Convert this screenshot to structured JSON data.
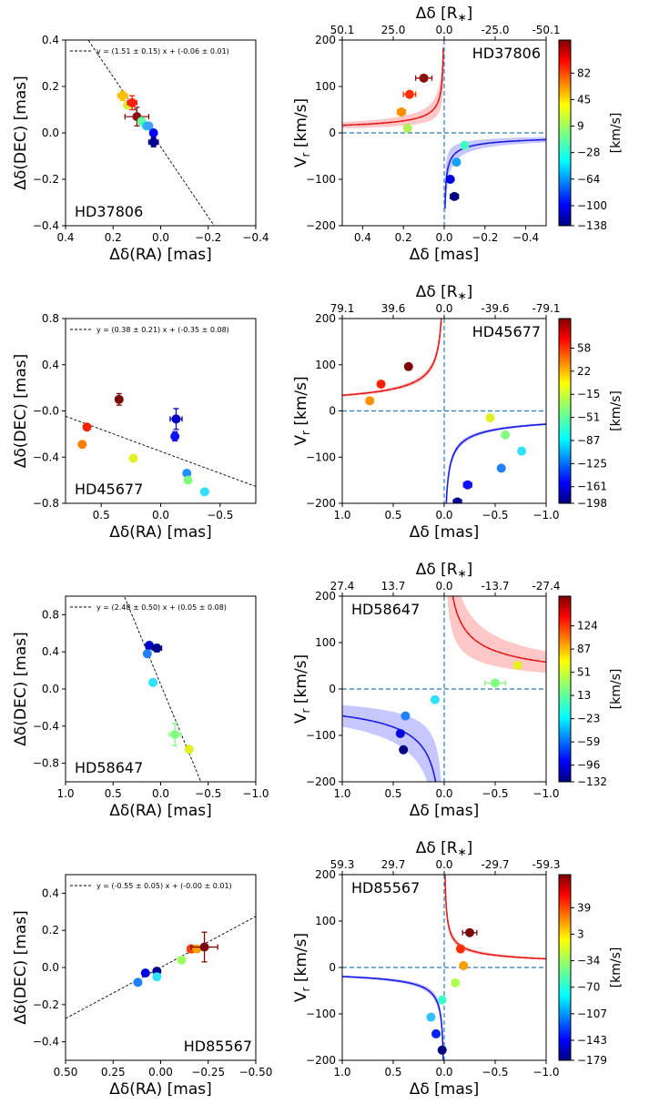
{
  "chart_data": [
    {
      "type": "scatter",
      "star": "HD37806",
      "xlabel": "Δδ(RA) [mas]",
      "ylabel": "Δδ(DEC) [mas]",
      "xlim": [
        0.4,
        -0.4
      ],
      "ylim": [
        -0.4,
        0.4
      ],
      "xticks": [
        0.4,
        0.2,
        0.0,
        -0.2,
        -0.4
      ],
      "xtick_labels": [
        "0.4",
        "0.2",
        "0.0",
        "−0.2",
        "−0.4"
      ],
      "yticks": [
        -0.4,
        -0.2,
        0.0,
        0.2,
        0.4
      ],
      "ytick_labels": [
        "−0.4",
        "−0.2",
        "0.0",
        "0.2",
        "0.4"
      ],
      "fit_label": "y = (1.51 ± 0.15) x + (-0.06 ± 0.01)",
      "fit": {
        "slope": 1.51,
        "intercept": -0.06
      },
      "points": [
        {
          "x": 0.16,
          "y": 0.16,
          "color": "#ffc000",
          "xerr": 0.02,
          "yerr": 0.02
        },
        {
          "x": 0.14,
          "y": 0.12,
          "color": "#d8f030"
        },
        {
          "x": 0.12,
          "y": 0.13,
          "color": "#ff2000",
          "xerr": 0.02,
          "yerr": 0.03
        },
        {
          "x": 0.1,
          "y": 0.07,
          "color": "#8b1010",
          "xerr": 0.05,
          "yerr": 0.04
        },
        {
          "x": 0.08,
          "y": 0.05,
          "color": "#60ffa0"
        },
        {
          "x": 0.06,
          "y": 0.03,
          "color": "#10d0ff"
        },
        {
          "x": 0.05,
          "y": 0.03,
          "color": "#40a0ff"
        },
        {
          "x": 0.03,
          "y": 0.0,
          "color": "#0000ff"
        },
        {
          "x": 0.03,
          "y": -0.04,
          "color": "#000090",
          "xerr": 0.02,
          "yerr": 0.02
        }
      ]
    },
    {
      "type": "scatter",
      "star": "HD37806",
      "ylabel": "Vr [km/s]",
      "xlabel": "Δδ [mas]",
      "top_xlabel": "Δδ [R*]",
      "xlim": [
        0.5,
        -0.5
      ],
      "ylim": [
        -200,
        200
      ],
      "xticks": [
        0.4,
        0.2,
        0.0,
        -0.2,
        -0.4
      ],
      "xtick_labels": [
        "0.4",
        "0.2",
        "0.0",
        "−0.2",
        "−0.4"
      ],
      "yticks": [
        -200,
        -100,
        0,
        100,
        200
      ],
      "ytick_labels": [
        "−200",
        "−100",
        "0",
        "100",
        "200"
      ],
      "top_ticks": [
        "50.1",
        "25.0",
        "0.0",
        "-25.0",
        "-50.1"
      ],
      "red_curve_k": 11.6,
      "blue_curve_k": 10.3,
      "band_frac": 0.4,
      "points": [
        {
          "x": 0.1,
          "y": 118,
          "color": "#8b1010",
          "xerr": 0.04
        },
        {
          "x": 0.17,
          "y": 83,
          "color": "#ff3000",
          "xerr": 0.03
        },
        {
          "x": 0.21,
          "y": 45,
          "color": "#ff9000",
          "xerr": 0.02
        },
        {
          "x": 0.18,
          "y": 10,
          "color": "#b0f050"
        },
        {
          "x": -0.1,
          "y": -27,
          "color": "#40ffc0"
        },
        {
          "x": -0.06,
          "y": -63,
          "color": "#10a0ff"
        },
        {
          "x": -0.03,
          "y": -100,
          "color": "#0000e0"
        },
        {
          "x": -0.05,
          "y": -137,
          "color": "#000080",
          "xerr": 0.02
        }
      ],
      "colorbar": {
        "ticks": [
          "82",
          "45",
          "9",
          "−28",
          "−64",
          "−100",
          "−138"
        ],
        "label": "[km/s]"
      }
    },
    {
      "type": "scatter",
      "star": "HD45677",
      "xlabel": "Δδ(RA) [mas]",
      "ylabel": "Δδ(DEC) [mas]",
      "xlim": [
        0.8,
        -0.8
      ],
      "ylim": [
        -0.8,
        0.8
      ],
      "xticks": [
        0.5,
        0.0,
        -0.5
      ],
      "xtick_labels": [
        "0.5",
        "0.0",
        "−0.5"
      ],
      "yticks": [
        -0.8,
        -0.4,
        0.0,
        0.4,
        0.8
      ],
      "ytick_labels": [
        "−0.8",
        "−0.4",
        "−0.0",
        "0.4",
        "0.8"
      ],
      "fit_label": "y = (0.38 ± 0.21) x + (-0.35 ± 0.08)",
      "fit": {
        "slope": 0.38,
        "intercept": -0.35
      },
      "points": [
        {
          "x": 0.35,
          "y": 0.1,
          "color": "#7a0a0a",
          "xerr": 0.02,
          "yerr": 0.05
        },
        {
          "x": 0.62,
          "y": -0.14,
          "color": "#ff2000"
        },
        {
          "x": 0.66,
          "y": -0.29,
          "color": "#ff8000"
        },
        {
          "x": 0.23,
          "y": -0.41,
          "color": "#e0f020"
        },
        {
          "x": -0.13,
          "y": -0.07,
          "color": "#0000c0",
          "xerr": 0.05,
          "yerr": 0.09
        },
        {
          "x": -0.12,
          "y": -0.22,
          "color": "#1010ff",
          "yerr": 0.04
        },
        {
          "x": -0.22,
          "y": -0.54,
          "color": "#2090ff"
        },
        {
          "x": -0.23,
          "y": -0.6,
          "color": "#80ff80"
        },
        {
          "x": -0.37,
          "y": -0.7,
          "color": "#30e0ff"
        }
      ]
    },
    {
      "type": "scatter",
      "star": "HD45677",
      "ylabel": "Vr [km/s]",
      "xlabel": "Δδ [mas]",
      "top_xlabel": "Δδ [R*]",
      "xlim": [
        1.0,
        -1.0
      ],
      "ylim": [
        -200,
        200
      ],
      "xticks": [
        1.0,
        0.5,
        0.0,
        -0.5,
        -1.0
      ],
      "xtick_labels": [
        "1.0",
        "0.5",
        "0.0",
        "−0.5",
        "−1.0"
      ],
      "yticks": [
        -200,
        -100,
        0,
        100,
        200
      ],
      "ytick_labels": [
        "−200",
        "−100",
        "0",
        "100",
        "200"
      ],
      "top_ticks": [
        "79.1",
        "39.6",
        "0.0",
        "-39.6",
        "-79.1"
      ],
      "red_curve_k": 33.8,
      "blue_curve_k": 28.7,
      "band_frac": 0.08,
      "points": [
        {
          "x": 0.35,
          "y": 96,
          "color": "#7a0a0a"
        },
        {
          "x": 0.62,
          "y": 58,
          "color": "#ff2000"
        },
        {
          "x": 0.73,
          "y": 22,
          "color": "#ff9000"
        },
        {
          "x": -0.45,
          "y": -15,
          "color": "#e0f020"
        },
        {
          "x": -0.6,
          "y": -52,
          "color": "#80ff80"
        },
        {
          "x": -0.76,
          "y": -87,
          "color": "#30e0ff"
        },
        {
          "x": -0.56,
          "y": -124,
          "color": "#2080ff"
        },
        {
          "x": -0.23,
          "y": -160,
          "color": "#1010ff",
          "xerr": 0.04
        },
        {
          "x": -0.13,
          "y": -197,
          "color": "#000090",
          "xerr": 0.04
        }
      ],
      "colorbar": {
        "ticks": [
          "58",
          "22",
          "−15",
          "−51",
          "−87",
          "−125",
          "−161",
          "−198"
        ],
        "label": "[km/s]"
      }
    },
    {
      "type": "scatter",
      "star": "HD58647",
      "xlabel": "Δδ(RA) [mas]",
      "ylabel": "Δδ(DEC) [mas]",
      "xlim": [
        1.0,
        -1.0
      ],
      "ylim": [
        -1.0,
        1.0
      ],
      "xticks": [
        1.0,
        0.5,
        0.0,
        -0.5,
        -1.0
      ],
      "xtick_labels": [
        "1.0",
        "0.5",
        "0.0",
        "−0.5",
        "−1.0"
      ],
      "yticks": [
        -0.8,
        -0.4,
        0.0,
        0.4,
        0.8
      ],
      "ytick_labels": [
        "−0.8",
        "−0.4",
        "0.0",
        "0.4",
        "0.8"
      ],
      "fit_label": "y = (2.48 ± 0.50) x + (0.05 ± 0.08)",
      "fit": {
        "slope": 2.48,
        "intercept": 0.05
      },
      "points": [
        {
          "x": 0.12,
          "y": 0.47,
          "color": "#0000c0"
        },
        {
          "x": 0.04,
          "y": 0.44,
          "color": "#000090",
          "xerr": 0.05,
          "yerr": 0.04
        },
        {
          "x": 0.14,
          "y": 0.38,
          "color": "#2080ff"
        },
        {
          "x": 0.08,
          "y": 0.07,
          "color": "#30e0ff"
        },
        {
          "x": -0.15,
          "y": -0.49,
          "color": "#80ff80",
          "xerr": 0.06,
          "yerr": 0.12
        },
        {
          "x": -0.3,
          "y": -0.65,
          "color": "#e0f020"
        }
      ]
    },
    {
      "type": "scatter",
      "star": "HD58647",
      "ylabel": "Vr [km/s]",
      "xlabel": "Δδ [mas]",
      "top_xlabel": "Δδ [R*]",
      "xlim": [
        1.0,
        -1.0
      ],
      "ylim": [
        -200,
        200
      ],
      "xticks": [
        1.0,
        0.5,
        0.0,
        -0.5,
        -1.0
      ],
      "xtick_labels": [
        "1.0",
        "0.5",
        "0.0",
        "−0.5",
        "−1.0"
      ],
      "yticks": [
        -200,
        -100,
        0,
        100,
        200
      ],
      "ytick_labels": [
        "−200",
        "−100",
        "0",
        "100",
        "200"
      ],
      "top_ticks": [
        "27.4",
        "13.7",
        "0.0",
        "-13.7",
        "-27.4"
      ],
      "red_curve_k": 58,
      "blue_curve_k": 58,
      "band_frac": 0.4,
      "points": [
        {
          "x": -0.72,
          "y": 51,
          "color": "#e8f020"
        },
        {
          "x": -0.5,
          "y": 13,
          "color": "#80ff80",
          "xerr": 0.1
        },
        {
          "x": 0.09,
          "y": -23,
          "color": "#30e0ff"
        },
        {
          "x": 0.38,
          "y": -58,
          "color": "#2080ff"
        },
        {
          "x": 0.43,
          "y": -96,
          "color": "#0000e0"
        },
        {
          "x": 0.4,
          "y": -131,
          "color": "#000080",
          "xerr": 0.02
        }
      ],
      "colorbar": {
        "ticks": [
          "124",
          "87",
          "51",
          "13",
          "−23",
          "−59",
          "−96",
          "−132"
        ],
        "label": "[km/s]"
      }
    },
    {
      "type": "scatter",
      "star": "HD85567",
      "xlabel": "Δδ(RA) [mas]",
      "ylabel": "Δδ(DEC) [mas]",
      "xlim": [
        0.5,
        -0.5
      ],
      "ylim": [
        -0.5,
        0.5
      ],
      "xticks": [
        0.5,
        0.25,
        0.0,
        -0.25,
        -0.5
      ],
      "xtick_labels": [
        "0.50",
        "0.25",
        "0.00",
        "−0.25",
        "−0.50"
      ],
      "yticks": [
        -0.4,
        -0.2,
        0.0,
        0.2,
        0.4
      ],
      "ytick_labels": [
        "−0.4",
        "−0.2",
        "0.0",
        "0.2",
        "0.4"
      ],
      "fit_label": "y = (-0.55 ± 0.05) x + (-0.00 ± 0.01)",
      "fit": {
        "slope": -0.55,
        "intercept": 0.0
      },
      "points": [
        {
          "x": 0.12,
          "y": -0.08,
          "color": "#2080ff"
        },
        {
          "x": 0.08,
          "y": -0.03,
          "color": "#0000e0"
        },
        {
          "x": 0.02,
          "y": -0.02,
          "color": "#000090"
        },
        {
          "x": 0.02,
          "y": -0.05,
          "color": "#30e0ff"
        },
        {
          "x": -0.11,
          "y": 0.04,
          "color": "#a0ff60"
        },
        {
          "x": -0.16,
          "y": 0.1,
          "color": "#ff4000",
          "xerr": 0.02,
          "yerr": 0.02
        },
        {
          "x": -0.19,
          "y": 0.1,
          "color": "#ffa000"
        },
        {
          "x": -0.23,
          "y": 0.11,
          "color": "#7a0a0a",
          "xerr": 0.07,
          "yerr": 0.08
        }
      ]
    },
    {
      "type": "scatter",
      "star": "HD85567",
      "ylabel": "Vr [km/s]",
      "xlabel": "Δδ [mas]",
      "top_xlabel": "Δδ [R*]",
      "xlim": [
        1.0,
        -1.0
      ],
      "ylim": [
        -200,
        200
      ],
      "xticks": [
        1.0,
        0.5,
        0.0,
        -0.5,
        -1.0
      ],
      "xtick_labels": [
        "1.0",
        "0.5",
        "0.0",
        "−0.5",
        "−1.0"
      ],
      "yticks": [
        -200,
        -100,
        0,
        100,
        200
      ],
      "ytick_labels": [
        "−200",
        "−100",
        "0",
        "100",
        "200"
      ],
      "top_ticks": [
        "59.3",
        "29.7",
        "0.0",
        "-29.7",
        "-59.3"
      ],
      "red_curve_k": 18.7,
      "blue_curve_k": 19.5,
      "band_frac": 0.12,
      "points": [
        {
          "x": -0.25,
          "y": 75,
          "color": "#7a0a0a",
          "xerr": 0.07
        },
        {
          "x": -0.16,
          "y": 40,
          "color": "#ff3000"
        },
        {
          "x": -0.19,
          "y": 4,
          "color": "#ffa000"
        },
        {
          "x": -0.11,
          "y": -33,
          "color": "#b0ff50"
        },
        {
          "x": 0.02,
          "y": -70,
          "color": "#40ffd0"
        },
        {
          "x": 0.13,
          "y": -107,
          "color": "#30c0ff"
        },
        {
          "x": 0.08,
          "y": -143,
          "color": "#0020ff"
        },
        {
          "x": 0.02,
          "y": -178,
          "color": "#000080"
        }
      ],
      "colorbar": {
        "ticks": [
          "39",
          "3",
          "−34",
          "−70",
          "−107",
          "−143",
          "−179"
        ],
        "label": "[km/s]"
      }
    }
  ]
}
